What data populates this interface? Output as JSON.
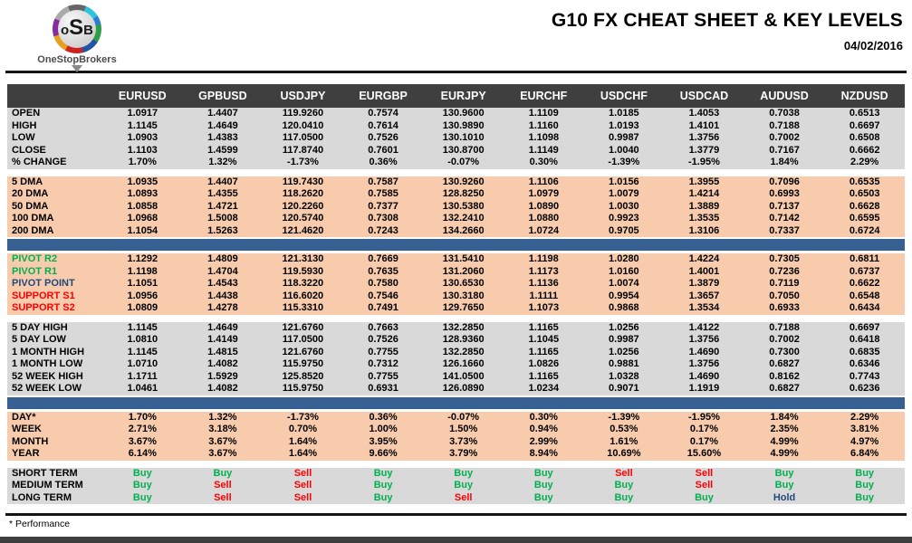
{
  "header": {
    "logo": {
      "letters": [
        "o",
        "S",
        "B"
      ],
      "subtext": "OneStopBrokers"
    },
    "title": "G10 FX CHEAT SHEET & KEY LEVELS",
    "date": "04/02/2016"
  },
  "colors": {
    "header_bg": "#3F3F3F",
    "gray_row": "#D9D9D9",
    "peach_row": "#F8CBAD",
    "blue_bar": "#376092",
    "buy_green": "#00B050",
    "sell_red": "#FF0000",
    "hold_blue": "#1F497D",
    "pivot_green": "#00B050",
    "pivot_navy": "#1F497D",
    "support_red": "#FF0000"
  },
  "signal_colors": {
    "Buy": "#00B050",
    "Sell": "#FF0000",
    "Hold": "#1F497D"
  },
  "table": {
    "columns": [
      "EURUSD",
      "GPBUSD",
      "USDJPY",
      "EURGBP",
      "EURJPY",
      "EURCHF",
      "USDCHF",
      "USDCAD",
      "AUDUSD",
      "NZDUSD"
    ],
    "sections": [
      {
        "id": "ohlc",
        "theme": "gray",
        "separator_before": "none",
        "signals": false,
        "rows": [
          {
            "label": "OPEN",
            "values": [
              "1.0917",
              "1.4407",
              "119.9260",
              "0.7574",
              "130.9600",
              "1.1109",
              "1.0185",
              "1.4053",
              "0.7038",
              "0.6513"
            ]
          },
          {
            "label": "HIGH",
            "values": [
              "1.1145",
              "1.4649",
              "120.0410",
              "0.7614",
              "130.9890",
              "1.1160",
              "1.0193",
              "1.4101",
              "0.7188",
              "0.6697"
            ]
          },
          {
            "label": "LOW",
            "values": [
              "1.0903",
              "1.4383",
              "117.0500",
              "0.7526",
              "130.1010",
              "1.1098",
              "0.9987",
              "1.3756",
              "0.7002",
              "0.6508"
            ]
          },
          {
            "label": "CLOSE",
            "values": [
              "1.1103",
              "1.4599",
              "117.8740",
              "0.7601",
              "130.8700",
              "1.1149",
              "1.0040",
              "1.3779",
              "0.7167",
              "0.6662"
            ]
          },
          {
            "label": "% CHANGE",
            "values": [
              "1.70%",
              "1.32%",
              "-1.73%",
              "0.36%",
              "-0.07%",
              "0.30%",
              "-1.39%",
              "-1.95%",
              "1.84%",
              "2.29%"
            ]
          }
        ]
      },
      {
        "id": "dma",
        "theme": "peach",
        "separator_before": "gap",
        "signals": false,
        "rows": [
          {
            "label": "5 DMA",
            "values": [
              "1.0935",
              "1.4407",
              "119.7430",
              "0.7587",
              "130.9260",
              "1.1106",
              "1.0156",
              "1.3955",
              "0.7096",
              "0.6535"
            ]
          },
          {
            "label": "20 DMA",
            "values": [
              "1.0893",
              "1.4355",
              "118.2620",
              "0.7585",
              "128.8250",
              "1.0979",
              "1.0079",
              "1.4214",
              "0.6993",
              "0.6503"
            ]
          },
          {
            "label": "50 DMA",
            "values": [
              "1.0858",
              "1.4721",
              "120.2260",
              "0.7377",
              "130.5380",
              "1.0890",
              "1.0030",
              "1.3889",
              "0.7137",
              "0.6628"
            ]
          },
          {
            "label": "100 DMA",
            "values": [
              "1.0968",
              "1.5008",
              "120.5740",
              "0.7308",
              "132.2410",
              "1.0880",
              "0.9923",
              "1.3535",
              "0.7142",
              "0.6595"
            ]
          },
          {
            "label": "200 DMA",
            "values": [
              "1.1054",
              "1.5263",
              "121.4620",
              "0.7243",
              "134.2660",
              "1.0724",
              "0.9705",
              "1.3106",
              "0.7337",
              "0.6724"
            ]
          }
        ]
      },
      {
        "id": "pivots",
        "theme": "peach",
        "separator_before": "bluebar",
        "signals": false,
        "rows": [
          {
            "label": "PIVOT R2",
            "label_color": "#00B050",
            "values": [
              "1.1292",
              "1.4809",
              "121.3130",
              "0.7669",
              "131.5410",
              "1.1198",
              "1.0280",
              "1.4224",
              "0.7305",
              "0.6811"
            ]
          },
          {
            "label": "PIVOT R1",
            "label_color": "#00B050",
            "values": [
              "1.1198",
              "1.4704",
              "119.5930",
              "0.7635",
              "131.2060",
              "1.1173",
              "1.0160",
              "1.4001",
              "0.7236",
              "0.6737"
            ]
          },
          {
            "label": "PIVOT POINT",
            "label_color": "#1F497D",
            "values": [
              "1.1051",
              "1.4543",
              "118.3220",
              "0.7580",
              "130.6530",
              "1.1136",
              "1.0074",
              "1.3879",
              "0.7119",
              "0.6622"
            ]
          },
          {
            "label": "SUPPORT S1",
            "label_color": "#FF0000",
            "values": [
              "1.0956",
              "1.4438",
              "116.6020",
              "0.7546",
              "130.3180",
              "1.1111",
              "0.9954",
              "1.3657",
              "0.7050",
              "0.6548"
            ]
          },
          {
            "label": "SUPPORT S2",
            "label_color": "#FF0000",
            "values": [
              "1.0809",
              "1.4278",
              "115.3310",
              "0.7491",
              "129.7650",
              "1.1073",
              "0.9868",
              "1.3534",
              "0.6933",
              "0.6434"
            ]
          }
        ]
      },
      {
        "id": "ranges",
        "theme": "gray",
        "separator_before": "gap",
        "signals": false,
        "rows": [
          {
            "label": "5 DAY HIGH",
            "values": [
              "1.1145",
              "1.4649",
              "121.6760",
              "0.7663",
              "132.2850",
              "1.1165",
              "1.0256",
              "1.4122",
              "0.7188",
              "0.6697"
            ]
          },
          {
            "label": "5 DAY LOW",
            "values": [
              "1.0810",
              "1.4149",
              "117.0500",
              "0.7526",
              "128.9360",
              "1.1045",
              "0.9987",
              "1.3756",
              "0.7002",
              "0.6418"
            ]
          },
          {
            "label": "1 MONTH HIGH",
            "values": [
              "1.1145",
              "1.4815",
              "121.6760",
              "0.7755",
              "132.2850",
              "1.1165",
              "1.0256",
              "1.4690",
              "0.7300",
              "0.6835"
            ]
          },
          {
            "label": "1 MONTH LOW",
            "values": [
              "1.0710",
              "1.4082",
              "115.9750",
              "0.7312",
              "126.1660",
              "1.0826",
              "0.9881",
              "1.3756",
              "0.6827",
              "0.6346"
            ]
          },
          {
            "label": "52 WEEK HIGH",
            "values": [
              "1.1711",
              "1.5929",
              "125.8520",
              "0.7755",
              "141.0500",
              "1.1165",
              "1.0328",
              "1.4690",
              "0.8162",
              "0.7743"
            ]
          },
          {
            "label": "52 WEEK LOW",
            "values": [
              "1.0461",
              "1.4082",
              "115.9750",
              "0.6931",
              "126.0890",
              "1.0234",
              "0.9071",
              "1.1919",
              "0.6827",
              "0.6236"
            ]
          }
        ]
      },
      {
        "id": "performance",
        "theme": "peach",
        "separator_before": "bluebar",
        "signals": false,
        "rows": [
          {
            "label": "DAY*",
            "values": [
              "1.70%",
              "1.32%",
              "-1.73%",
              "0.36%",
              "-0.07%",
              "0.30%",
              "-1.39%",
              "-1.95%",
              "1.84%",
              "2.29%"
            ]
          },
          {
            "label": "WEEK",
            "values": [
              "2.71%",
              "3.18%",
              "0.70%",
              "1.00%",
              "1.50%",
              "0.94%",
              "0.53%",
              "0.17%",
              "2.35%",
              "3.81%"
            ]
          },
          {
            "label": "MONTH",
            "values": [
              "3.67%",
              "3.67%",
              "1.64%",
              "3.95%",
              "3.73%",
              "2.99%",
              "1.61%",
              "0.17%",
              "4.99%",
              "4.97%"
            ]
          },
          {
            "label": "YEAR",
            "values": [
              "6.14%",
              "3.67%",
              "1.64%",
              "9.66%",
              "3.79%",
              "8.94%",
              "10.69%",
              "15.60%",
              "4.99%",
              "6.84%"
            ]
          }
        ]
      },
      {
        "id": "signals",
        "theme": "gray",
        "separator_before": "gap",
        "signals": true,
        "rows": [
          {
            "label": "SHORT TERM",
            "values": [
              "Buy",
              "Buy",
              "Sell",
              "Buy",
              "Buy",
              "Buy",
              "Sell",
              "Sell",
              "Buy",
              "Buy"
            ]
          },
          {
            "label": "MEDIUM TERM",
            "values": [
              "Buy",
              "Sell",
              "Sell",
              "Buy",
              "Buy",
              "Buy",
              "Buy",
              "Sell",
              "Buy",
              "Buy"
            ]
          },
          {
            "label": "LONG TERM",
            "values": [
              "Buy",
              "Sell",
              "Sell",
              "Buy",
              "Sell",
              "Buy",
              "Buy",
              "Buy",
              "Hold",
              "Buy"
            ]
          }
        ]
      }
    ]
  },
  "footer": {
    "note": "* Performance"
  }
}
